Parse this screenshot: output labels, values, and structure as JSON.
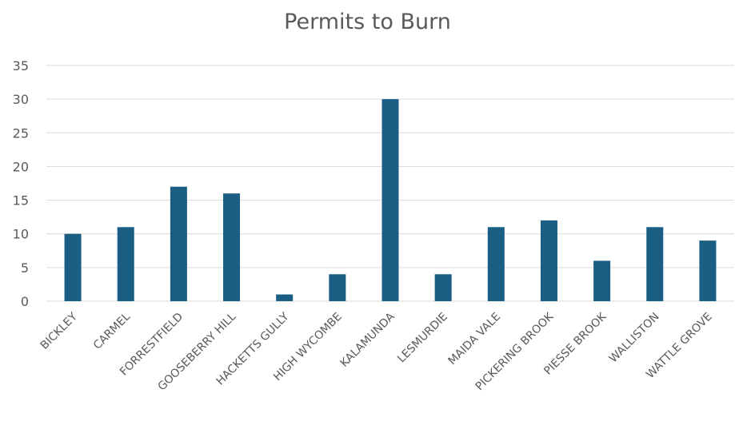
{
  "chart_data": {
    "type": "bar",
    "title": "Permits to Burn",
    "xlabel": "",
    "ylabel": "",
    "categories": [
      "BICKLEY",
      "CARMEL",
      "FORRESTFIELD",
      "GOOSEBERRY HILL",
      "HACKETTS GULLY",
      "HIGH WYCOMBE",
      "KALAMUNDA",
      "LESMURDIE",
      "MAIDA VALE",
      "PICKERING BROOK",
      "PIESSE BROOK",
      "WALLISTON",
      "WATTLE GROVE"
    ],
    "values": [
      10,
      11,
      17,
      16,
      1,
      4,
      30,
      4,
      11,
      12,
      6,
      11,
      9
    ],
    "ylim": [
      0,
      35
    ],
    "yticks": [
      0,
      5,
      10,
      15,
      20,
      25,
      30,
      35
    ],
    "grid": true,
    "legend": "none",
    "colors": {
      "bar": "#1a5e84",
      "grid": "#d9d9d9",
      "tick_text": "#595959",
      "title": "#595959"
    }
  }
}
